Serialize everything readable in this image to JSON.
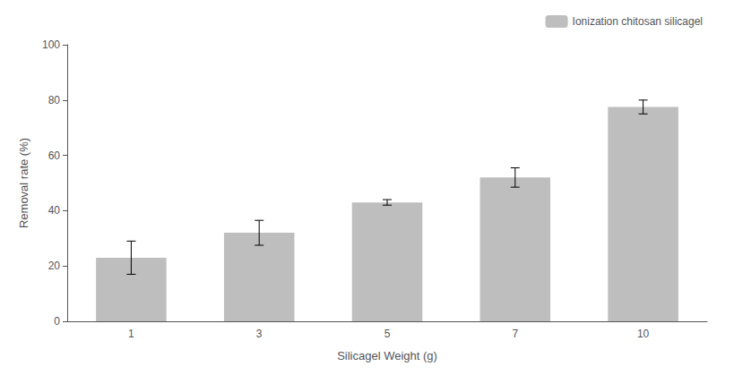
{
  "chart_data": {
    "type": "bar",
    "xlabel": "Silicagel Weight (g)",
    "ylabel": "Removal rate (%)",
    "categories": [
      "1",
      "3",
      "5",
      "7",
      "10"
    ],
    "series": [
      {
        "name": "Ionization chitosan silicagel",
        "color": "#BEBEBE",
        "values": [
          23.0,
          32.0,
          43.0,
          52.0,
          77.5
        ],
        "errors": [
          6.0,
          4.5,
          1.0,
          3.5,
          2.5
        ]
      }
    ],
    "ylim": [
      0,
      100
    ],
    "yticks": [
      0,
      20,
      40,
      60,
      80,
      100
    ],
    "grid": false,
    "legend": "upper right"
  }
}
